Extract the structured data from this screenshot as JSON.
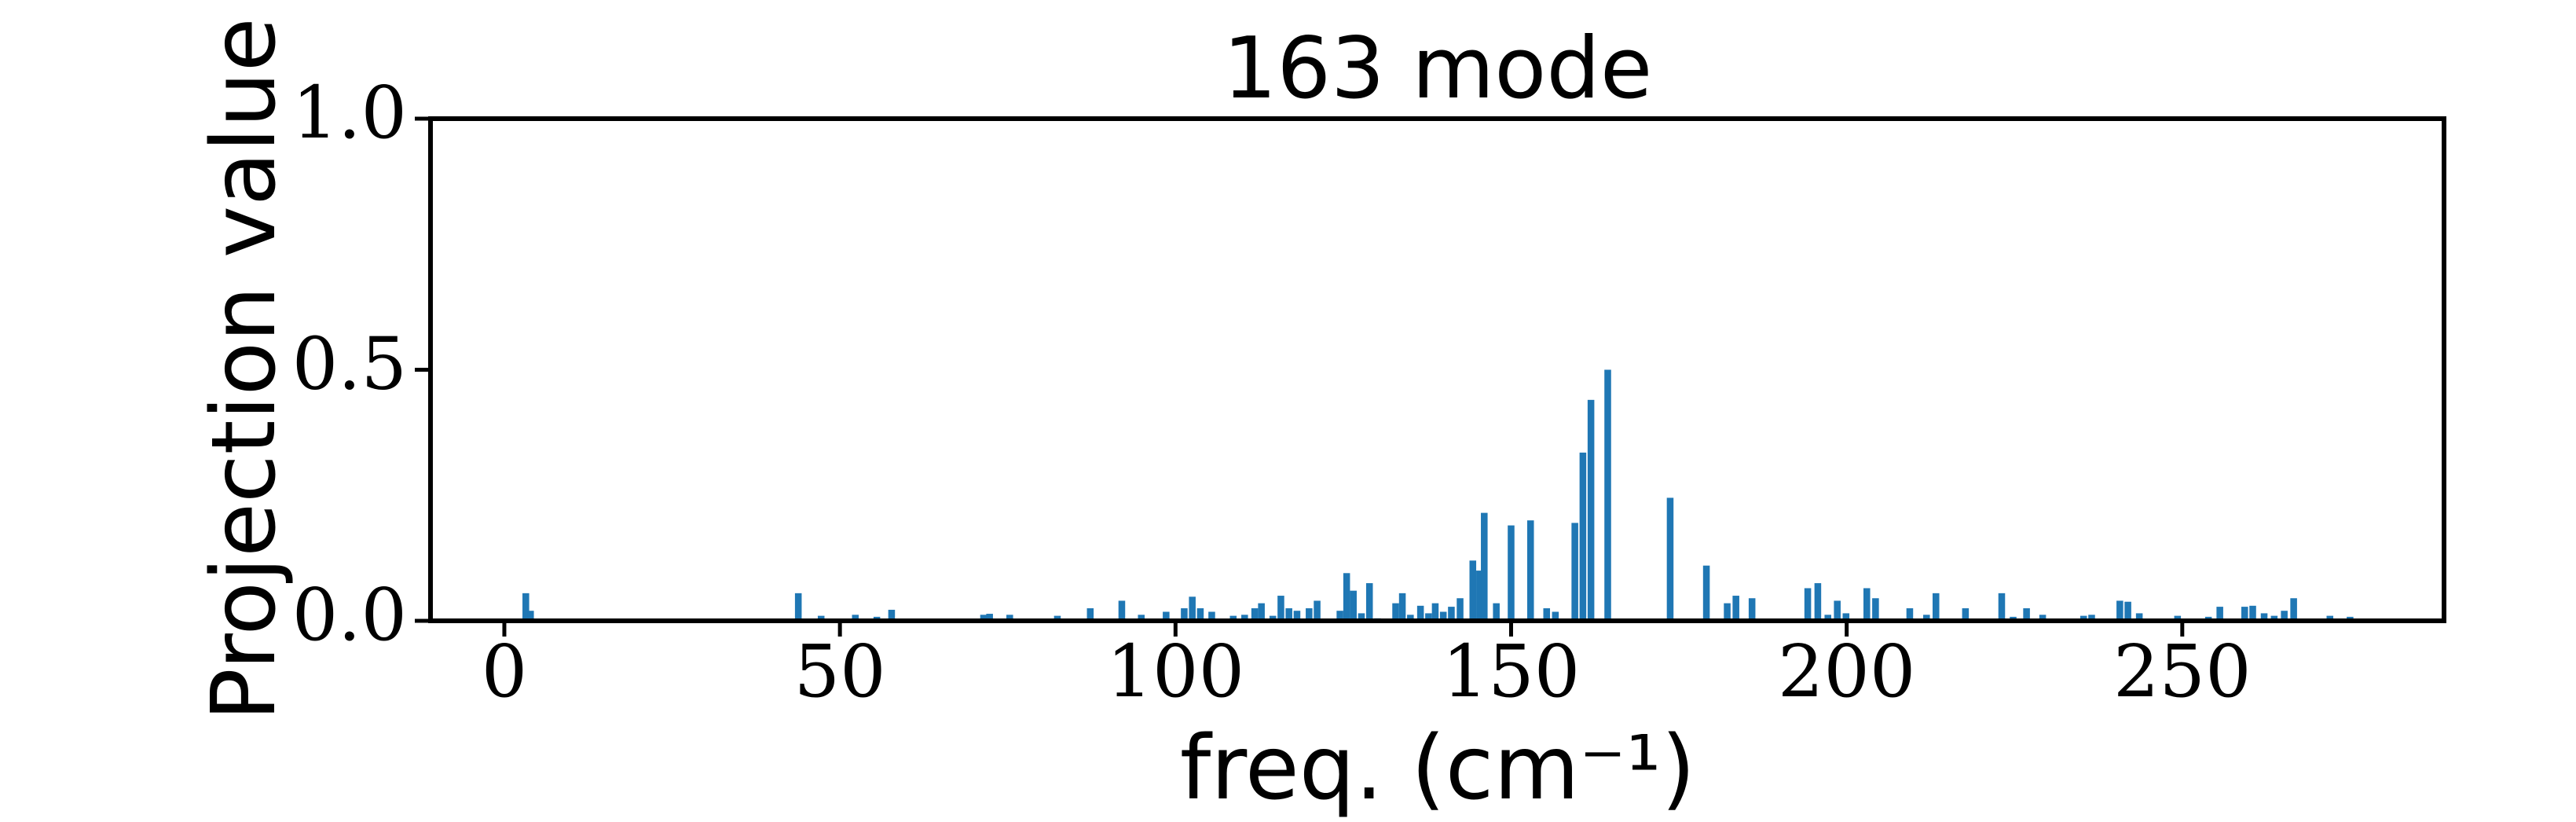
{
  "chart_data": {
    "type": "bar",
    "title": "163 mode",
    "xlabel": "freq. (cm⁻¹)",
    "ylabel": "Projection value",
    "color": "#1f77b4",
    "xlim": [
      -11,
      289
    ],
    "ylim": [
      0,
      1
    ],
    "xticks": [
      0,
      50,
      100,
      150,
      200,
      250
    ],
    "yticks": [
      {
        "value": 0,
        "label": "0.0"
      },
      0.5,
      {
        "value": 1,
        "label": "1.0"
      }
    ],
    "x": [
      3.2,
      3.9,
      43.8,
      47.2,
      52.3,
      55.5,
      57.7,
      62,
      71.4,
      72.3,
      75.3,
      82.4,
      87.3,
      92,
      94.9,
      98.6,
      101.3,
      102.5,
      103.7,
      105.4,
      108.6,
      110.3,
      111.8,
      112.8,
      114.5,
      115.7,
      116.9,
      118.1,
      119.9,
      121.1,
      124.5,
      125.5,
      126.5,
      127.7,
      128.9,
      130.1,
      132.8,
      133.8,
      135,
      136.5,
      137.7,
      138.7,
      139.9,
      141.1,
      142.4,
      144.3,
      145.3,
      146,
      147.8,
      150,
      152.9,
      155.3,
      156.6,
      159.5,
      160.7,
      161.9,
      164.4,
      173.7,
      179.1,
      182.2,
      183.5,
      185.9,
      194.2,
      195.7,
      197.2,
      198.6,
      199.9,
      203,
      204.3,
      209.4,
      211.9,
      213.3,
      217.7,
      223.1,
      224.8,
      226.8,
      229.2,
      235.3,
      236.5,
      240.7,
      241.9,
      243.6,
      249.3,
      253.9,
      255.6,
      259.3,
      260.5,
      262.2,
      263.7,
      265.2,
      266.6,
      272,
      275
    ],
    "values": [
      0.055,
      0.02,
      0.055,
      0.01,
      0.012,
      0.008,
      0.022,
      0.004,
      0.012,
      0.014,
      0.012,
      0.01,
      0.025,
      0.04,
      0.012,
      0.018,
      0.025,
      0.048,
      0.025,
      0.018,
      0.01,
      0.012,
      0.025,
      0.035,
      0.01,
      0.05,
      0.025,
      0.02,
      0.025,
      0.04,
      0.02,
      0.095,
      0.06,
      0.015,
      0.075,
      0.005,
      0.035,
      0.055,
      0.012,
      0.03,
      0.015,
      0.035,
      0.018,
      0.028,
      0.045,
      0.12,
      0.1,
      0.215,
      0.035,
      0.19,
      0.2,
      0.025,
      0.018,
      0.195,
      0.335,
      0.44,
      0.5,
      0.245,
      0.11,
      0.035,
      0.05,
      0.045,
      0.065,
      0.075,
      0.012,
      0.04,
      0.015,
      0.065,
      0.045,
      0.025,
      0.012,
      0.055,
      0.025,
      0.055,
      0.008,
      0.025,
      0.012,
      0.01,
      0.012,
      0.04,
      0.038,
      0.015,
      0.01,
      0.008,
      0.028,
      0.028,
      0.03,
      0.015,
      0.01,
      0.02,
      0.045,
      0.01,
      0.008
    ]
  }
}
